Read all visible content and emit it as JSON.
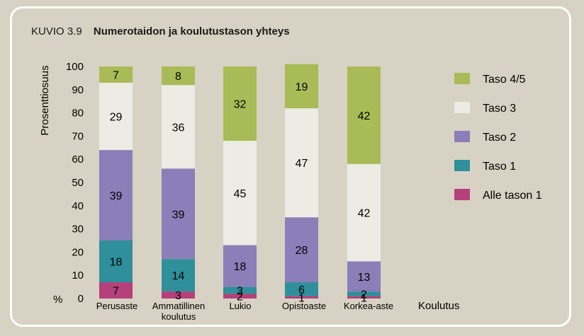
{
  "figure": {
    "label": "KUVIO 3.9",
    "title": "Numerotaidon ja koulutustason yhteys"
  },
  "chart_data": {
    "type": "bar",
    "stacked": true,
    "title": "Numerotaidon ja koulutustason yhteys",
    "ylabel": "Prosenttiosuus",
    "y_unit": "%",
    "xlabel": "Koulutus",
    "ylim": [
      0,
      100
    ],
    "yticks": [
      0,
      10,
      20,
      30,
      40,
      50,
      60,
      70,
      80,
      90,
      100
    ],
    "categories": [
      [
        "Perusaste"
      ],
      [
        "Ammatillinen",
        "koulutus"
      ],
      [
        "Lukio"
      ],
      [
        "Opistoaste"
      ],
      [
        "Korkea-aste"
      ]
    ],
    "series": [
      {
        "name": "Alle tason 1",
        "color": "#b5407c",
        "values": [
          7,
          3,
          2,
          1,
          1
        ]
      },
      {
        "name": "Taso 1",
        "color": "#2f8f9a",
        "values": [
          18,
          14,
          3,
          6,
          2
        ]
      },
      {
        "name": "Taso 2",
        "color": "#8a7fb8",
        "values": [
          39,
          39,
          18,
          28,
          13
        ]
      },
      {
        "name": "Taso 3",
        "color": "#ecebe4",
        "values": [
          29,
          36,
          45,
          47,
          42
        ]
      },
      {
        "name": "Taso 4/5",
        "color": "#a9bb56",
        "values": [
          7,
          8,
          32,
          19,
          42
        ]
      }
    ],
    "legend_position": "right",
    "grid": false
  }
}
